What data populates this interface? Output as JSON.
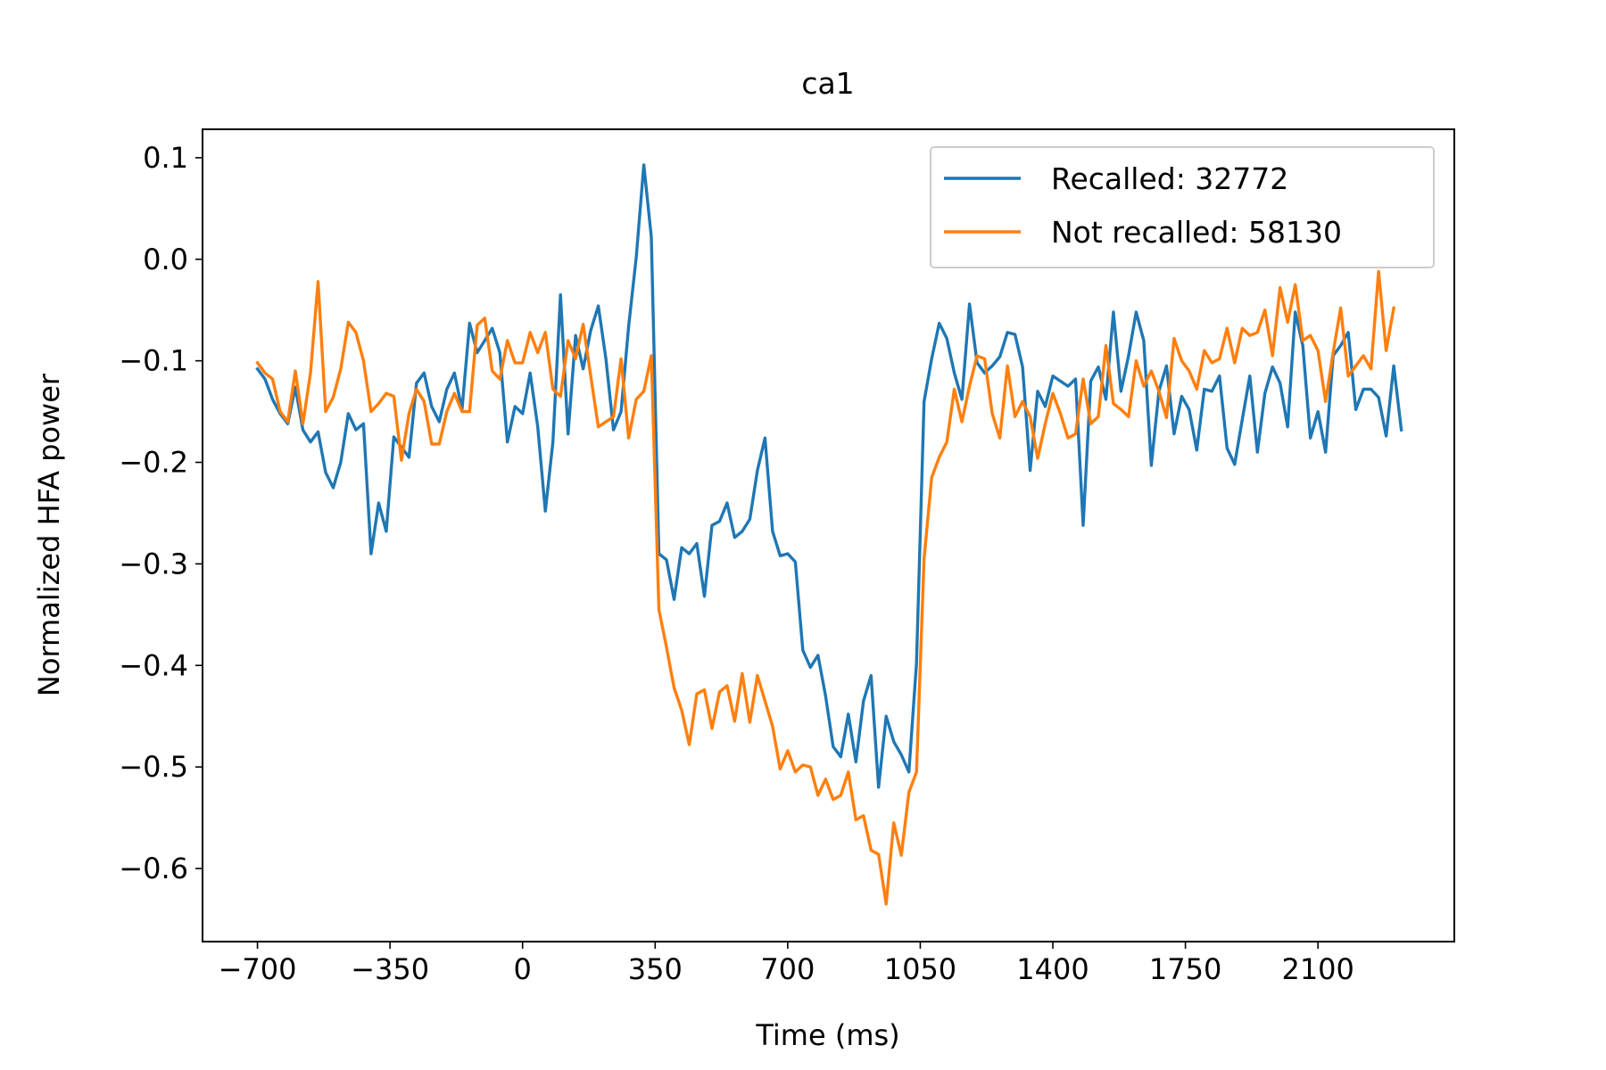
{
  "chart_data": {
    "type": "line",
    "title": "ca1",
    "xlabel": "Time (ms)",
    "ylabel": "Normalized HFA power",
    "xlim": [
      -845,
      2460
    ],
    "ylim": [
      -0.672,
      0.128
    ],
    "xticks": [
      -700,
      -350,
      0,
      350,
      700,
      1050,
      1400,
      1750,
      2100
    ],
    "xtick_labels": [
      "−700",
      "−350",
      "0",
      "350",
      "700",
      "1050",
      "1400",
      "1750",
      "2100"
    ],
    "yticks": [
      0.1,
      0.0,
      -0.1,
      -0.2,
      -0.3,
      -0.4,
      -0.5,
      -0.6
    ],
    "ytick_labels": [
      "0.1",
      "0.0",
      "−0.1",
      "−0.2",
      "−0.3",
      "−0.4",
      "−0.5",
      "−0.6"
    ],
    "grid": false,
    "legend_position": "upper right",
    "x_start": -700,
    "x_step": 20,
    "series": [
      {
        "name": "Recalled: 32772",
        "color": "#1f77b4",
        "values": [
          -0.108,
          -0.118,
          -0.138,
          -0.152,
          -0.162,
          -0.126,
          -0.168,
          -0.18,
          -0.17,
          -0.21,
          -0.225,
          -0.2,
          -0.152,
          -0.168,
          -0.162,
          -0.29,
          -0.24,
          -0.268,
          -0.175,
          -0.185,
          -0.195,
          -0.122,
          -0.112,
          -0.145,
          -0.16,
          -0.128,
          -0.112,
          -0.148,
          -0.063,
          -0.092,
          -0.08,
          -0.068,
          -0.092,
          -0.18,
          -0.145,
          -0.152,
          -0.112,
          -0.165,
          -0.248,
          -0.18,
          -0.035,
          -0.172,
          -0.075,
          -0.108,
          -0.07,
          -0.046,
          -0.098,
          -0.168,
          -0.15,
          -0.066,
          0.002,
          0.093,
          0.022,
          -0.29,
          -0.296,
          -0.335,
          -0.284,
          -0.29,
          -0.28,
          -0.332,
          -0.262,
          -0.258,
          -0.24,
          -0.274,
          -0.268,
          -0.256,
          -0.208,
          -0.176,
          -0.268,
          -0.292,
          -0.29,
          -0.298,
          -0.385,
          -0.402,
          -0.39,
          -0.43,
          -0.48,
          -0.49,
          -0.448,
          -0.495,
          -0.435,
          -0.41,
          -0.52,
          -0.45,
          -0.475,
          -0.488,
          -0.505,
          -0.398,
          -0.14,
          -0.098,
          -0.063,
          -0.078,
          -0.112,
          -0.138,
          -0.044,
          -0.102,
          -0.112,
          -0.105,
          -0.096,
          -0.072,
          -0.074,
          -0.106,
          -0.208,
          -0.13,
          -0.145,
          -0.115,
          -0.12,
          -0.125,
          -0.118,
          -0.262,
          -0.12,
          -0.106,
          -0.138,
          -0.052,
          -0.13,
          -0.095,
          -0.052,
          -0.08,
          -0.203,
          -0.13,
          -0.105,
          -0.172,
          -0.135,
          -0.148,
          -0.188,
          -0.128,
          -0.13,
          -0.115,
          -0.186,
          -0.202,
          -0.158,
          -0.115,
          -0.19,
          -0.132,
          -0.106,
          -0.122,
          -0.165,
          -0.052,
          -0.085,
          -0.176,
          -0.15,
          -0.19,
          -0.095,
          -0.085,
          -0.072,
          -0.148,
          -0.128,
          -0.128,
          -0.136,
          -0.174,
          -0.105,
          -0.168
        ]
      },
      {
        "name": "Not recalled: 58130",
        "color": "#ff7f0e",
        "values": [
          -0.102,
          -0.112,
          -0.118,
          -0.15,
          -0.16,
          -0.11,
          -0.162,
          -0.112,
          -0.022,
          -0.15,
          -0.136,
          -0.108,
          -0.062,
          -0.072,
          -0.1,
          -0.15,
          -0.142,
          -0.132,
          -0.135,
          -0.198,
          -0.152,
          -0.128,
          -0.14,
          -0.182,
          -0.182,
          -0.15,
          -0.132,
          -0.15,
          -0.15,
          -0.065,
          -0.058,
          -0.11,
          -0.118,
          -0.08,
          -0.102,
          -0.102,
          -0.072,
          -0.092,
          -0.072,
          -0.128,
          -0.135,
          -0.08,
          -0.098,
          -0.064,
          -0.115,
          -0.165,
          -0.16,
          -0.155,
          -0.098,
          -0.176,
          -0.138,
          -0.13,
          -0.095,
          -0.345,
          -0.382,
          -0.422,
          -0.444,
          -0.478,
          -0.428,
          -0.424,
          -0.462,
          -0.426,
          -0.42,
          -0.455,
          -0.408,
          -0.456,
          -0.41,
          -0.435,
          -0.46,
          -0.502,
          -0.484,
          -0.505,
          -0.498,
          -0.5,
          -0.528,
          -0.512,
          -0.532,
          -0.528,
          -0.505,
          -0.552,
          -0.548,
          -0.582,
          -0.586,
          -0.635,
          -0.555,
          -0.587,
          -0.525,
          -0.505,
          -0.295,
          -0.215,
          -0.195,
          -0.18,
          -0.128,
          -0.16,
          -0.125,
          -0.095,
          -0.098,
          -0.152,
          -0.176,
          -0.105,
          -0.155,
          -0.14,
          -0.155,
          -0.196,
          -0.162,
          -0.132,
          -0.152,
          -0.176,
          -0.172,
          -0.118,
          -0.162,
          -0.155,
          -0.085,
          -0.142,
          -0.148,
          -0.155,
          -0.1,
          -0.125,
          -0.11,
          -0.13,
          -0.156,
          -0.078,
          -0.1,
          -0.11,
          -0.128,
          -0.09,
          -0.102,
          -0.098,
          -0.068,
          -0.102,
          -0.068,
          -0.075,
          -0.072,
          -0.05,
          -0.095,
          -0.028,
          -0.062,
          -0.025,
          -0.08,
          -0.075,
          -0.09,
          -0.14,
          -0.092,
          -0.048,
          -0.115,
          -0.105,
          -0.095,
          -0.108,
          -0.012,
          -0.09,
          -0.048
        ]
      }
    ]
  }
}
